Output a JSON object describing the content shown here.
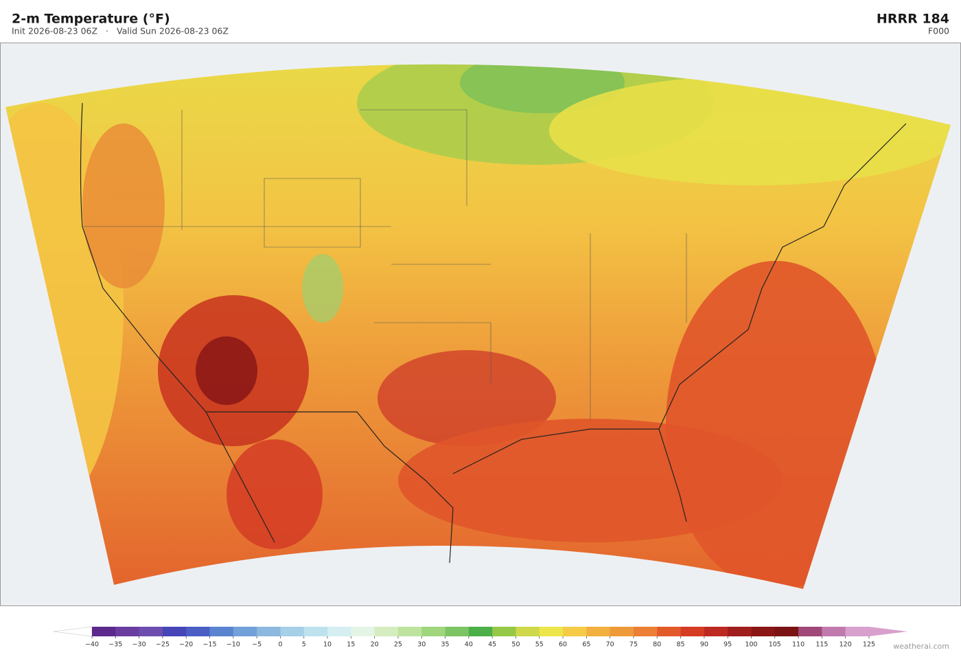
{
  "header": {
    "title": "2-m Temperature  (°F)",
    "init": "Init 2026-08-23 06Z",
    "separator": "·",
    "valid": "Valid Sun 2026-08-23 06Z",
    "model": "HRRR  184",
    "forecast_hour": "F000"
  },
  "colorbar": {
    "ticks": [
      {
        "value": -40,
        "label": "−40"
      },
      {
        "value": -35,
        "label": "−35"
      },
      {
        "value": -30,
        "label": "−30"
      },
      {
        "value": -25,
        "label": "−25"
      },
      {
        "value": -20,
        "label": "−20"
      },
      {
        "value": -15,
        "label": "−15"
      },
      {
        "value": -10,
        "label": "−10"
      },
      {
        "value": -5,
        "label": "−5"
      },
      0,
      5,
      10,
      15,
      20,
      25,
      30,
      35,
      40,
      45,
      50,
      55,
      60,
      65,
      70,
      75,
      80,
      85,
      90,
      95,
      100,
      105,
      110,
      115,
      120,
      125
    ],
    "colors": [
      "#5b2a8c",
      "#6a3ea0",
      "#6d4db0",
      "#4646b8",
      "#4a5ec4",
      "#5a84d0",
      "#72a0d8",
      "#8cb8e0",
      "#a6cfe8",
      "#bde2ee",
      "#d4eef2",
      "#e4f5e6",
      "#d4ecc0",
      "#bde39e",
      "#a0d67e",
      "#7cc464",
      "#4caf4a",
      "#95c846",
      "#cfd84a",
      "#ede64a",
      "#f5cb48",
      "#f2b040",
      "#ef9a3a",
      "#ec7f35",
      "#e35a2a",
      "#d43c24",
      "#bd2a22",
      "#a01e1e",
      "#8a1616",
      "#7a1414",
      "#a04878",
      "#c07aae",
      "#d8a0cc"
    ],
    "under_color": "#ffffff",
    "over_color": "#d8a0cc"
  },
  "footer": {
    "credit": "weatherai.com"
  }
}
